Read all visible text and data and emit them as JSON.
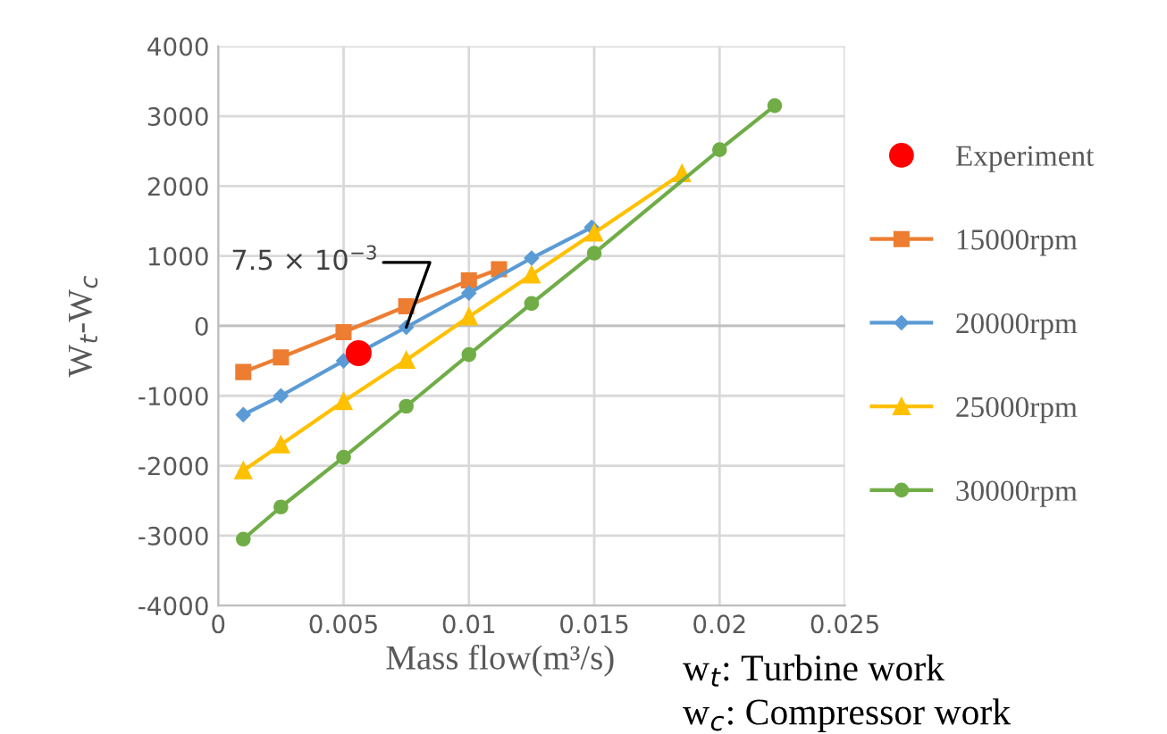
{
  "chart_data": {
    "type": "line",
    "xlabel": "Mass flow(m³/s)",
    "ylabel": "W$_{t}$-W$_{c}$",
    "xlim": [
      0,
      0.025
    ],
    "xticks": [
      0,
      0.005,
      0.01,
      0.015,
      0.02,
      0.025
    ],
    "ylim": [
      -4000,
      4000
    ],
    "yticks": [
      -4000,
      -3000,
      -2000,
      -1000,
      0,
      1000,
      2000,
      3000,
      4000
    ],
    "grid": true,
    "legend": "right",
    "line_style": "solid",
    "series": [
      {
        "name": "Experiment",
        "type": "scatter",
        "marker": "circle",
        "color": "#ff0000",
        "x": [
          0.0056
        ],
        "values": [
          -390
        ]
      },
      {
        "name": "15000rpm",
        "marker": "square",
        "color": "#ed7d31",
        "x": [
          0.001,
          0.0025,
          0.005,
          0.0075,
          0.01,
          0.0112
        ],
        "values": [
          -660,
          -450,
          -90,
          280,
          650,
          810
        ]
      },
      {
        "name": "20000rpm",
        "marker": "diamond",
        "color": "#5b9bd5",
        "x": [
          0.001,
          0.0025,
          0.005,
          0.0075,
          0.01,
          0.0125,
          0.0149
        ],
        "values": [
          -1270,
          -1000,
          -500,
          -20,
          470,
          970,
          1410
        ]
      },
      {
        "name": "25000rpm",
        "marker": "triangle",
        "color": "#ffc000",
        "x": [
          0.001,
          0.0025,
          0.005,
          0.0075,
          0.01,
          0.0125,
          0.015,
          0.0185
        ],
        "values": [
          -2070,
          -1700,
          -1080,
          -490,
          130,
          730,
          1330,
          2180
        ]
      },
      {
        "name": "30000rpm",
        "marker": "circle",
        "color": "#70ad47",
        "x": [
          0.001,
          0.0025,
          0.005,
          0.0075,
          0.01,
          0.0125,
          0.015,
          0.02,
          0.0222
        ],
        "values": [
          -3050,
          -2590,
          -1880,
          -1150,
          -410,
          320,
          1040,
          2520,
          3150
        ]
      }
    ],
    "annotations": [
      {
        "text": "7.5 × 10$^{−3}$",
        "x": 0.0075,
        "y": -20
      },
      "w$_{t}$: Turbine work",
      "w$_{c}$: Compressor work"
    ]
  }
}
